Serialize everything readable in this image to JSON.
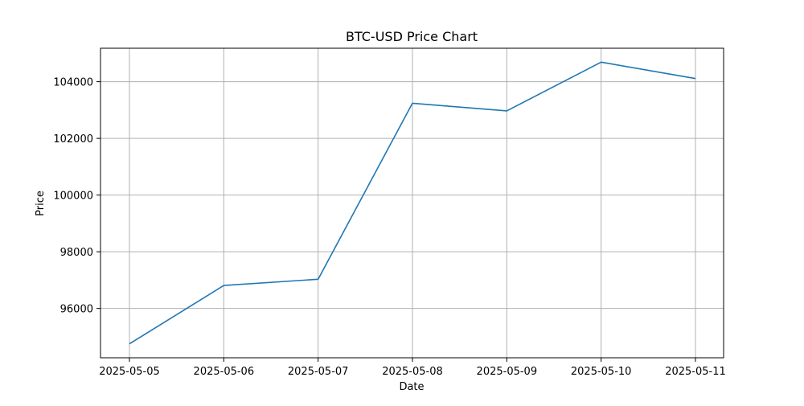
{
  "colors": {
    "line": "#1f77b4",
    "grid": "#b0b0b0",
    "axis": "#000000",
    "background": "#ffffff"
  },
  "chart_data": {
    "type": "line",
    "title": "BTC-USD Price Chart",
    "xlabel": "Date",
    "ylabel": "Price",
    "grid": true,
    "x": [
      "2025-05-05",
      "2025-05-06",
      "2025-05-07",
      "2025-05-08",
      "2025-05-09",
      "2025-05-10",
      "2025-05-11"
    ],
    "x_ticks": [
      "2025-05-05",
      "2025-05-06",
      "2025-05-07",
      "2025-05-08",
      "2025-05-09",
      "2025-05-10",
      "2025-05-11"
    ],
    "y_ticks": [
      96000,
      98000,
      100000,
      102000,
      104000
    ],
    "y_tick_labels": [
      "96000",
      "98000",
      "100000",
      "102000",
      "104000"
    ],
    "ylim": [
      94260,
      105180
    ],
    "series": [
      {
        "values": [
          94750,
          96810,
          97030,
          103240,
          102970,
          104690,
          104110
        ]
      }
    ]
  }
}
